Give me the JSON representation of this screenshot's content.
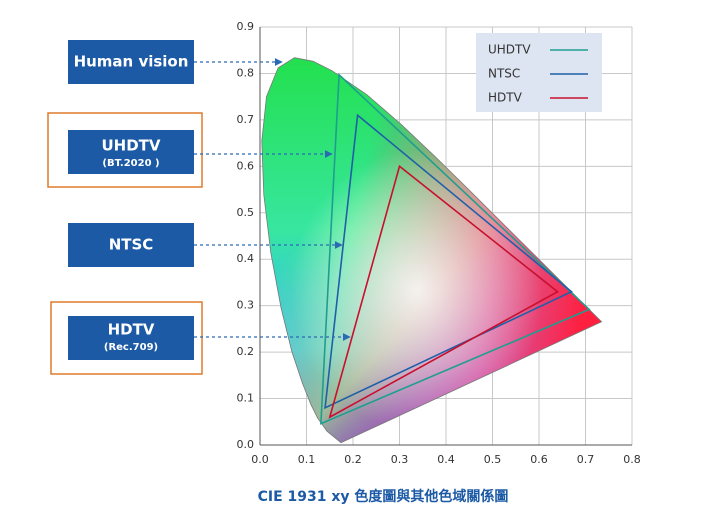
{
  "chart_data": {
    "type": "gamut",
    "caption": "CIE 1931 xy 色度圖與其他色域關係圖",
    "annotations": [
      "Human vision",
      "UHDTV",
      "(BT.2020 )",
      "NTSC",
      "HDTV",
      "(Rec.709)"
    ],
    "xlim": [
      0,
      0.8
    ],
    "ylim": [
      0,
      0.9
    ],
    "xticks": [
      {
        "value": 0,
        "label": "0.0"
      },
      0.1,
      0.2,
      0.3,
      0.4,
      0.5,
      0.6,
      0.7,
      0.8
    ],
    "yticks": [
      {
        "value": 0,
        "label": "0.0"
      },
      0.1,
      0.2,
      0.3,
      0.4,
      0.5,
      0.6,
      0.7,
      0.8,
      0.9
    ],
    "grid": true,
    "legend": "upper right",
    "locus": {
      "x": [
        0.1741,
        0.144,
        0.1241,
        0.1096,
        0.0913,
        0.0687,
        0.0454,
        0.0235,
        0.0082,
        0.0039,
        0.0139,
        0.0389,
        0.0743,
        0.1142,
        0.1547,
        0.2296,
        0.3016,
        0.3731,
        0.4441,
        0.5125,
        0.5752,
        0.627,
        0.6915,
        0.7347
      ],
      "y": [
        0.005,
        0.0297,
        0.0578,
        0.0868,
        0.1327,
        0.2007,
        0.295,
        0.4127,
        0.5384,
        0.6548,
        0.7502,
        0.812,
        0.8338,
        0.8262,
        0.8059,
        0.7543,
        0.6923,
        0.6245,
        0.5547,
        0.4866,
        0.4242,
        0.3725,
        0.3083,
        0.2653
      ]
    },
    "series": [
      {
        "name": "UHDTV",
        "color": "#1f9e8f",
        "x": [
          0.708,
          0.17,
          0.131
        ],
        "y": [
          0.292,
          0.797,
          0.046
        ]
      },
      {
        "name": "NTSC",
        "color": "#1f5fa8",
        "x": [
          0.67,
          0.21,
          0.14
        ],
        "y": [
          0.33,
          0.71,
          0.08
        ]
      },
      {
        "name": "HDTV",
        "color": "#c8102e",
        "x": [
          0.64,
          0.3,
          0.15
        ],
        "y": [
          0.33,
          0.6,
          0.06
        ]
      }
    ]
  }
}
